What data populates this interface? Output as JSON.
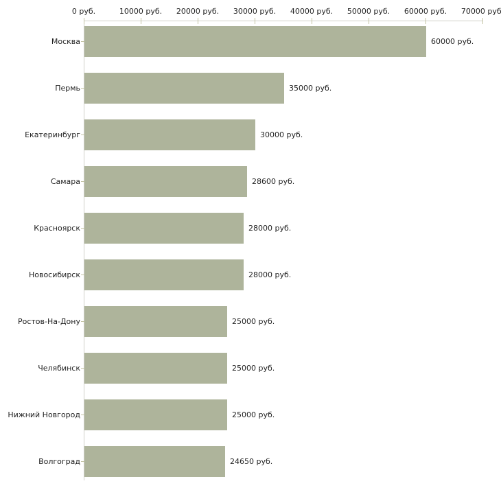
{
  "chart_data": {
    "type": "bar",
    "orientation": "horizontal",
    "title": "",
    "xlabel": "",
    "ylabel": "",
    "unit": "руб.",
    "categories": [
      "Москва",
      "Пермь",
      "Екатеринбург",
      "Самара",
      "Красноярск",
      "Новосибирск",
      "Ростов-На-Дону",
      "Челябинск",
      "Нижний Новгород",
      "Волгоград"
    ],
    "values": [
      60000,
      35000,
      30000,
      28600,
      28000,
      28000,
      25000,
      25000,
      25000,
      24650
    ],
    "value_labels": [
      "60000 руб.",
      "35000 руб.",
      "30000 руб.",
      "28600 руб.",
      "28000 руб.",
      "28000 руб.",
      "25000 руб.",
      "25000 руб.",
      "25000 руб.",
      "24650 руб."
    ],
    "x_tick_values": [
      0,
      10000,
      20000,
      30000,
      40000,
      50000,
      60000,
      70000
    ],
    "x_tick_labels": [
      "0 руб.",
      "10000 руб.",
      "20000 руб.",
      "30000 руб.",
      "40000 руб.",
      "50000 руб.",
      "60000 руб.",
      "70000 руб."
    ],
    "xlim": [
      0,
      70000
    ],
    "grid": false,
    "legend": "none",
    "axis_position": "top",
    "colors": {
      "bar": "#aeb49b",
      "axis_line": "#cfcfc7",
      "tick": "#c2c2a2",
      "text": "#222222",
      "background": "#ffffff"
    }
  }
}
